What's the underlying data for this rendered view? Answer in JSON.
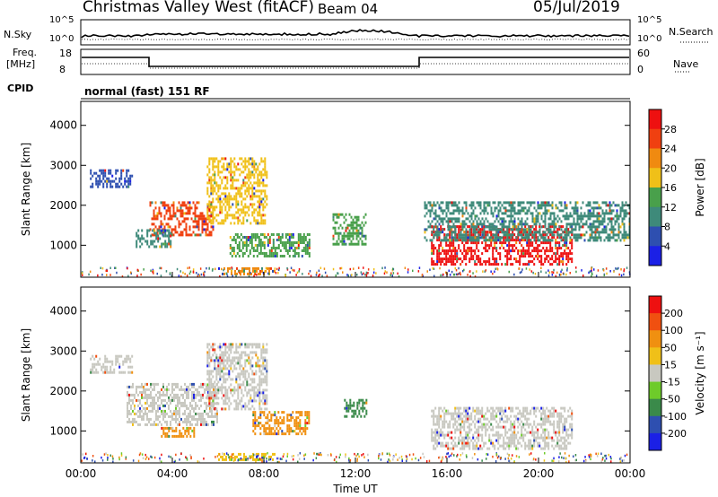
{
  "header": {
    "station_title": "Christmas Valley West (fitACF)",
    "beam": "Beam 04",
    "date": "05/Jul/2019"
  },
  "strip_panels": {
    "nsky": {
      "left_label": "N.Sky",
      "tick_top": "10^5",
      "tick_bottom": "10^0",
      "right_label": "N.Search",
      "right_tick_top": "10^5",
      "right_tick_bottom": "10^0"
    },
    "freq": {
      "left_label_1": "Freq.",
      "left_label_2": "[MHz]",
      "tick_top": "18",
      "tick_bottom": "8",
      "right_label": "Nave",
      "right_tick_top": "60",
      "right_tick_bottom": "0"
    },
    "cpid": {
      "label": "CPID",
      "value": "normal (fast) 151 RF"
    }
  },
  "chart_data": [
    {
      "type": "heatmap",
      "name": "power",
      "ylabel": "Slant Range [km]",
      "y_ticks": [
        "1000",
        "2000",
        "3000",
        "4000"
      ],
      "ylim": [
        200,
        4600
      ],
      "colorbar": {
        "label": "Power [dB]",
        "ticks": [
          "4",
          "8",
          "12",
          "16",
          "20",
          "24",
          "28"
        ],
        "colors": [
          "#1b20e6",
          "#2e4fb0",
          "#3e8a7a",
          "#49a04b",
          "#f0c018",
          "#f08a10",
          "#f04010",
          "#ee1010"
        ]
      },
      "regions": [
        {
          "t": [
            0.4,
            2.3
          ],
          "r": [
            2400,
            2900
          ],
          "level": "#2e4fb0"
        },
        {
          "t": [
            3.0,
            5.8
          ],
          "r": [
            1250,
            2100
          ],
          "level": "#f04010"
        },
        {
          "t": [
            5.5,
            8.2
          ],
          "r": [
            1500,
            3200
          ],
          "level": "#f0c018"
        },
        {
          "t": [
            2.4,
            4.0
          ],
          "r": [
            900,
            1400
          ],
          "level": "#3e8a7a"
        },
        {
          "t": [
            6.5,
            10.0
          ],
          "r": [
            700,
            1300
          ],
          "level": "#49a04b"
        },
        {
          "t": [
            6.0,
            8.5
          ],
          "r": [
            250,
            450
          ],
          "level": "#f08a10"
        },
        {
          "t": [
            11.0,
            12.5
          ],
          "r": [
            1000,
            1800
          ],
          "level": "#49a04b"
        },
        {
          "t": [
            15.3,
            21.5
          ],
          "r": [
            500,
            1500
          ],
          "level": "#ee1010"
        },
        {
          "t": [
            15.0,
            24.0
          ],
          "r": [
            1100,
            2100
          ],
          "level": "#3e8a7a"
        }
      ]
    },
    {
      "type": "heatmap",
      "name": "velocity",
      "ylabel": "Slant Range [km]",
      "y_ticks": [
        "1000",
        "2000",
        "3000",
        "4000"
      ],
      "ylim": [
        200,
        4600
      ],
      "colorbar": {
        "label": "Velocity [m s⁻¹]",
        "ticks": [
          "200",
          "100",
          "50",
          "15",
          "-15",
          "-50",
          "-100",
          "-200"
        ],
        "colors": [
          "#1b20e6",
          "#2e4fb0",
          "#3a8a4a",
          "#6ecb2a",
          "#c8c8c0",
          "#f0c018",
          "#f09010",
          "#f05010",
          "#ee1010"
        ]
      },
      "regions": [
        {
          "t": [
            0.4,
            2.3
          ],
          "r": [
            2400,
            2900
          ],
          "level": "#c8c8c0"
        },
        {
          "t": [
            2.0,
            6.0
          ],
          "r": [
            1100,
            2200
          ],
          "level": "#c8c8c0"
        },
        {
          "t": [
            5.5,
            8.2
          ],
          "r": [
            1500,
            3200
          ],
          "level": "#c8c8c0"
        },
        {
          "t": [
            3.5,
            5.0
          ],
          "r": [
            800,
            1100
          ],
          "level": "#f09010"
        },
        {
          "t": [
            7.5,
            10.0
          ],
          "r": [
            900,
            1500
          ],
          "level": "#f09010"
        },
        {
          "t": [
            6.0,
            8.5
          ],
          "r": [
            250,
            450
          ],
          "level": "#f0c018"
        },
        {
          "t": [
            11.5,
            12.5
          ],
          "r": [
            1300,
            1800
          ],
          "level": "#3a8a4a"
        },
        {
          "t": [
            15.3,
            21.5
          ],
          "r": [
            500,
            1600
          ],
          "level": "#c8c8c0"
        }
      ]
    }
  ],
  "x_axis": {
    "label": "Time UT",
    "ticks": [
      "00:00",
      "04:00",
      "08:00",
      "12:00",
      "16:00",
      "20:00",
      "00:00"
    ],
    "range_hours": [
      0,
      24
    ]
  }
}
